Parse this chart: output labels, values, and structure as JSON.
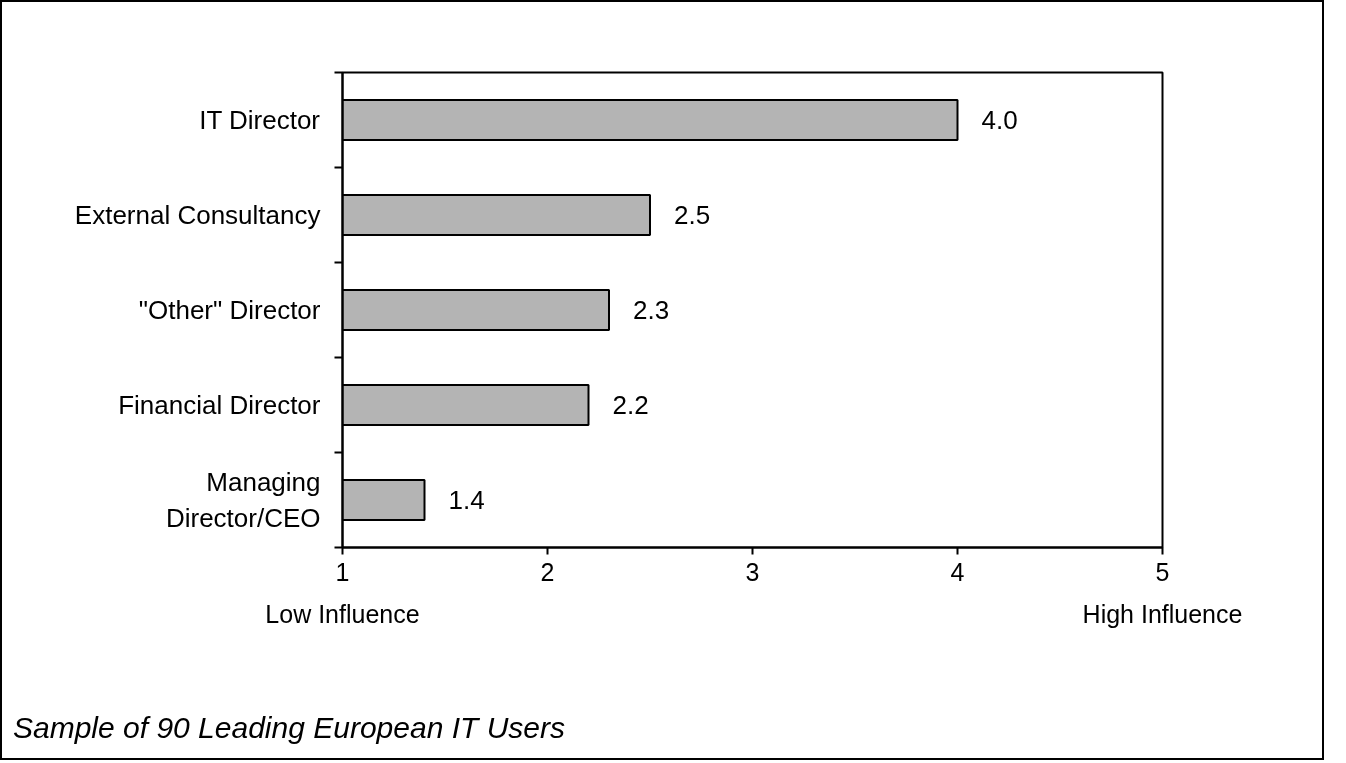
{
  "chart_data": {
    "type": "bar",
    "orientation": "horizontal",
    "categories": [
      "IT Director",
      "External Consultancy",
      "\"Other\" Director",
      "Financial Director",
      "Managing\nDirector/CEO"
    ],
    "values": [
      4.0,
      2.5,
      2.3,
      2.2,
      1.4
    ],
    "value_labels": [
      "4.0",
      "2.5",
      "2.3",
      "2.2",
      "1.4"
    ],
    "color": "#b4b4b4",
    "xlim": [
      1,
      5
    ],
    "xticks": [
      1,
      2,
      3,
      4,
      5
    ],
    "grid": false,
    "annotations": [
      "Low Influence",
      "High Influence",
      "Sample of 90 Leading European IT Users"
    ]
  }
}
